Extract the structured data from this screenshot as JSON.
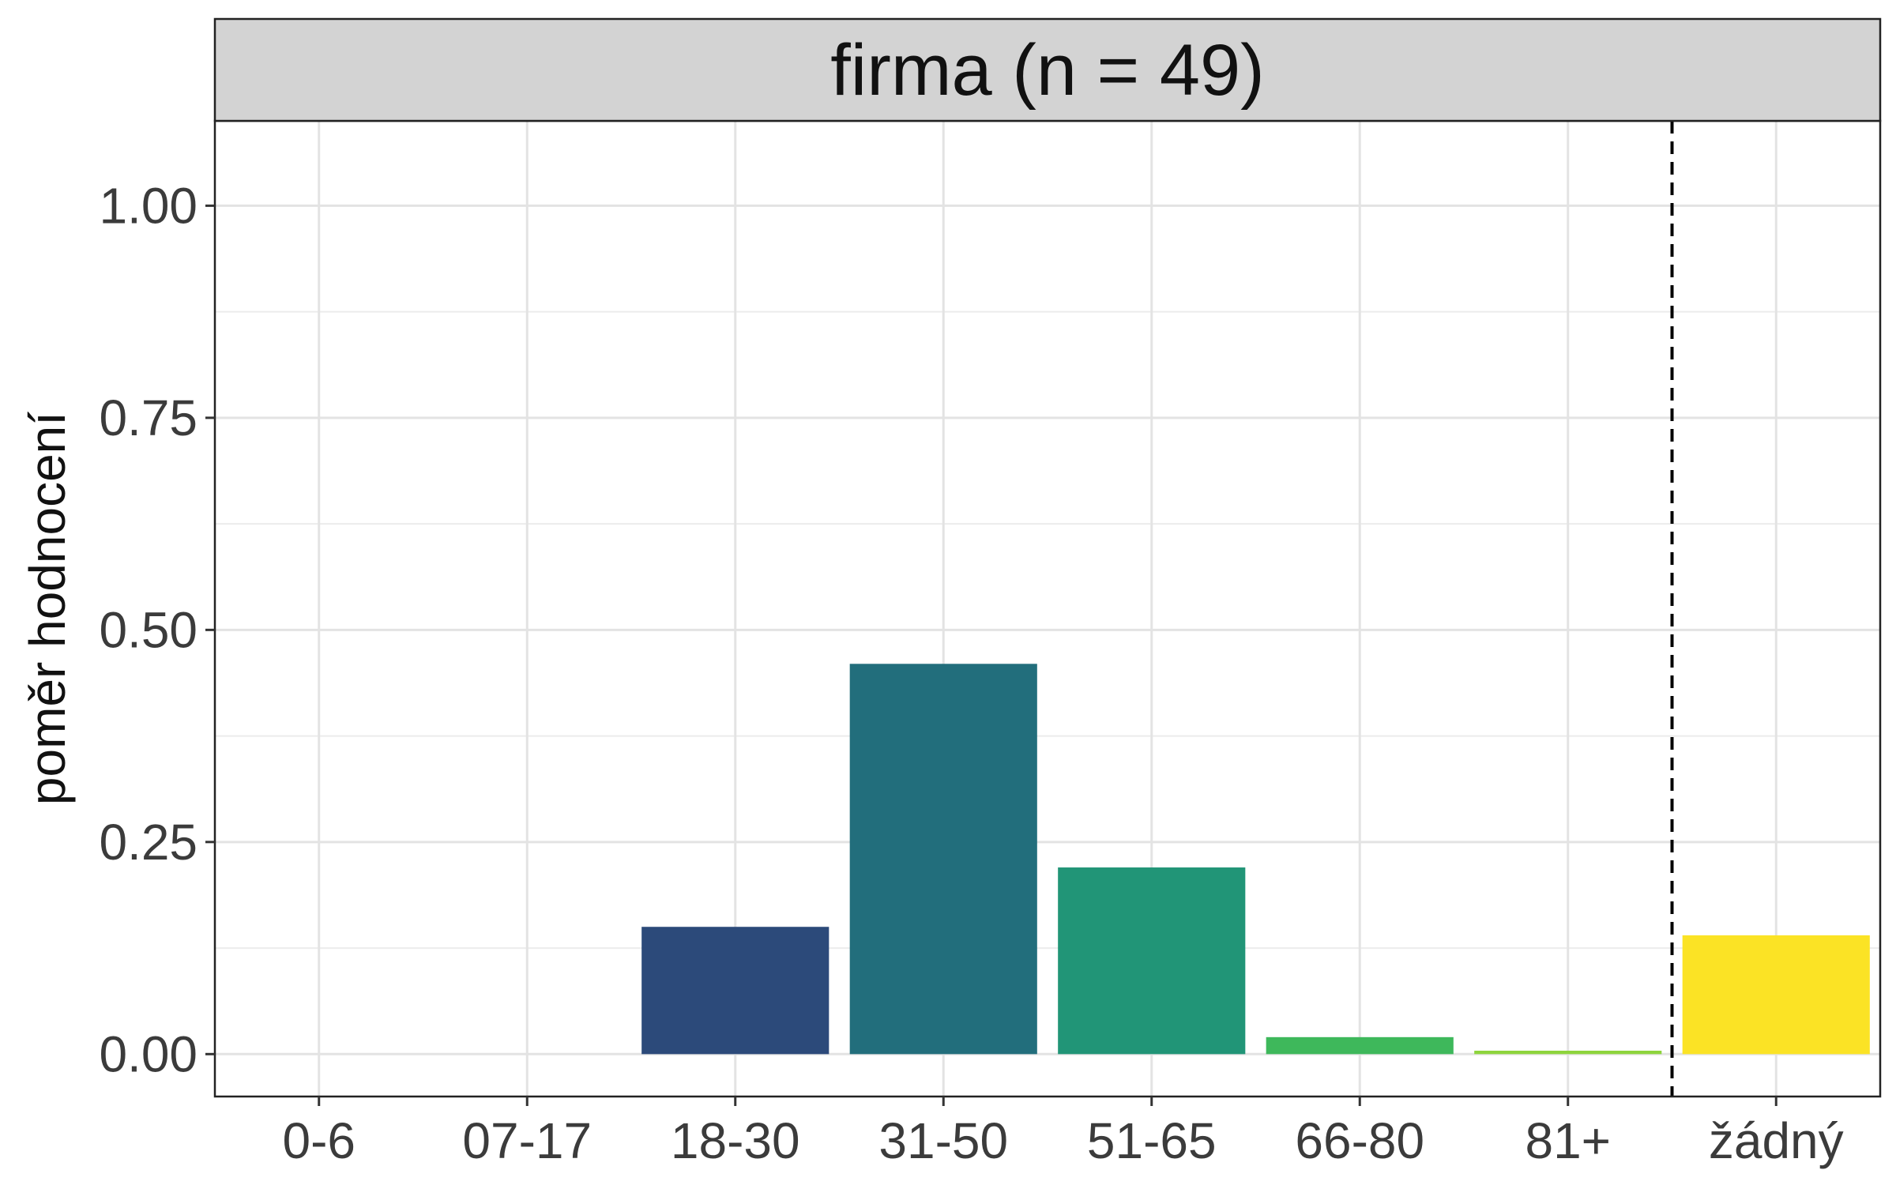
{
  "chart_data": {
    "type": "bar",
    "facet_title": "firma (n = 49)",
    "ylabel": "poměr hodnocení",
    "xlabel": "",
    "categories": [
      "0-6",
      "07-17",
      "18-30",
      "31-50",
      "51-65",
      "66-80",
      "81+",
      "žádný"
    ],
    "values": [
      0,
      0,
      0.15,
      0.46,
      0.22,
      0.02,
      0.004,
      0.14
    ],
    "colors": [
      "#440154",
      "#46327e",
      "#2c4a7a",
      "#226e7c",
      "#219577",
      "#3eb85b",
      "#8ed43c",
      "#fbe325"
    ],
    "ylim": [
      -0.05,
      1.1
    ],
    "yticks": [
      "0.00",
      "0.25",
      "0.50",
      "0.75",
      "1.00"
    ],
    "reference_line": {
      "between": [
        "81+",
        "žádný"
      ],
      "style": "dashed",
      "color": "#000000"
    },
    "grid": true,
    "strip_color": "#d3d3d3"
  }
}
